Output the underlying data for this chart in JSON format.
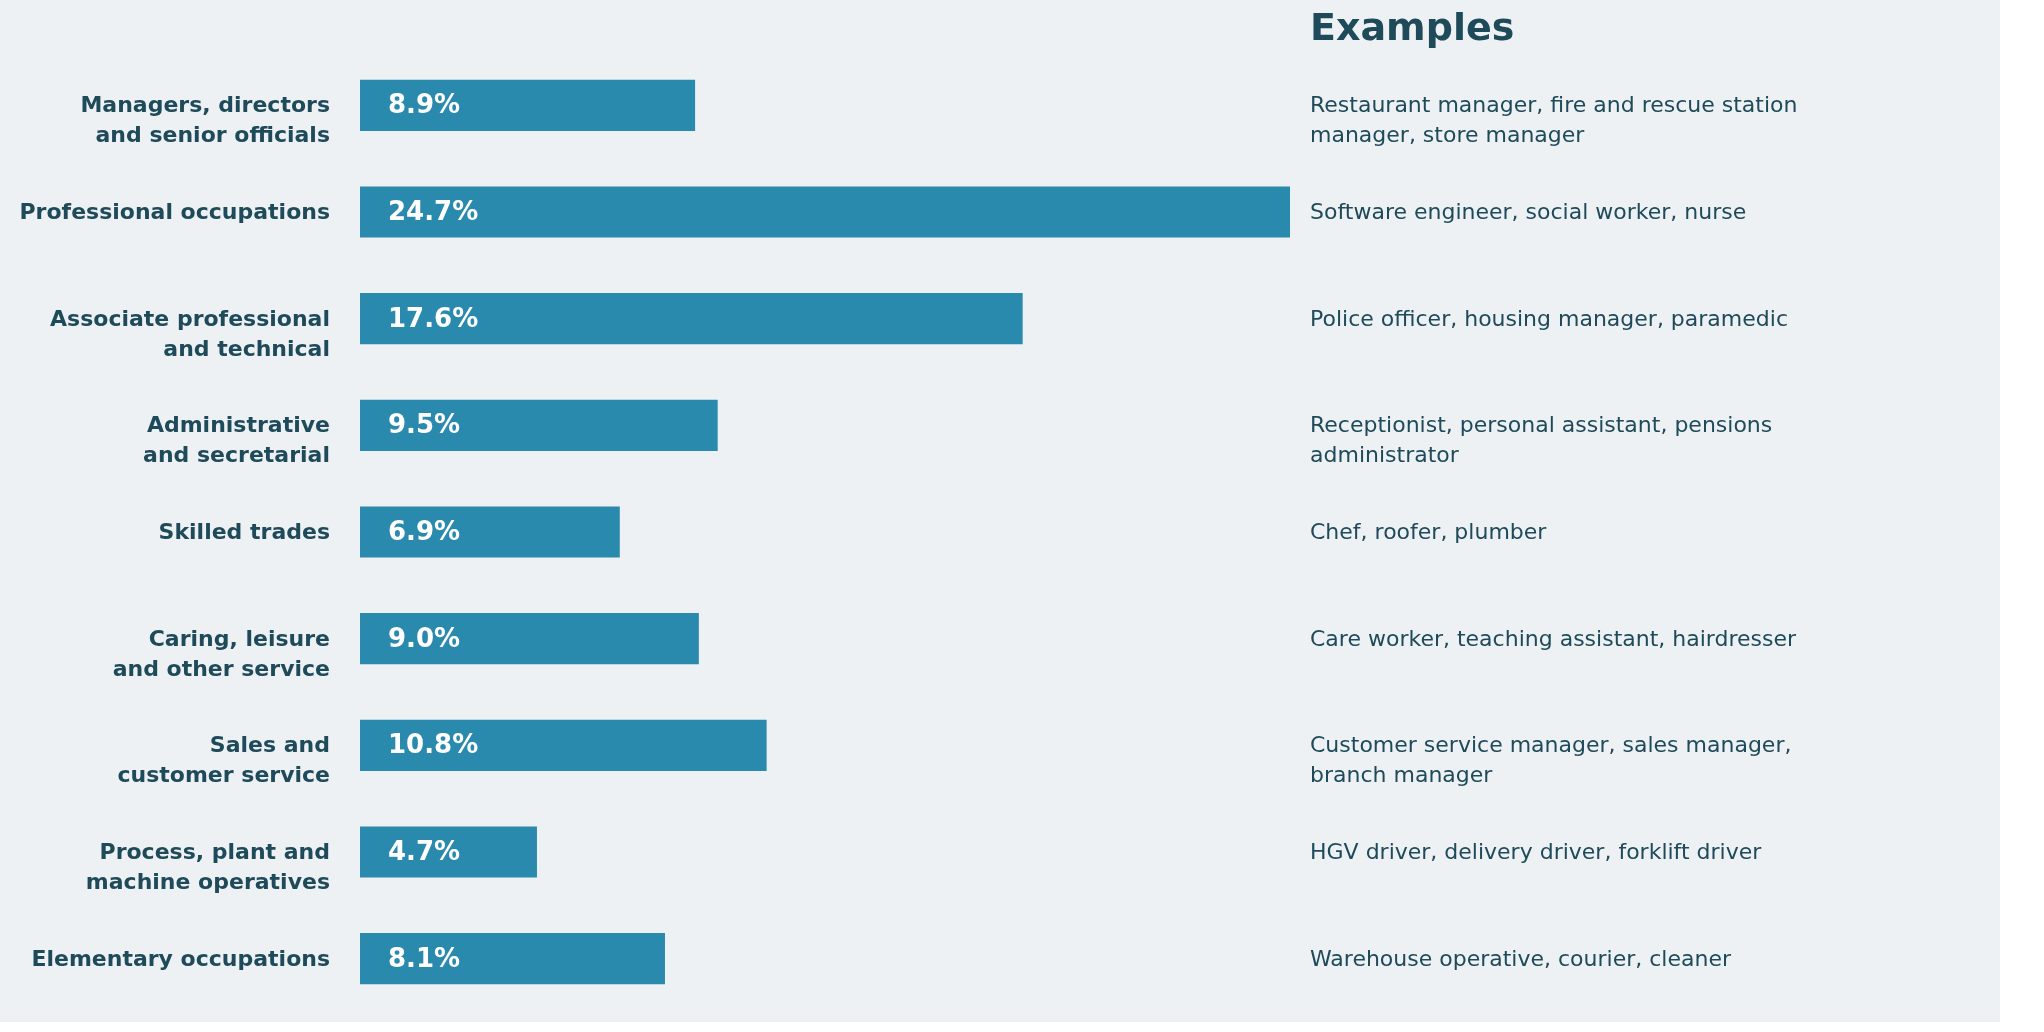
{
  "chart_data": {
    "type": "bar",
    "orientation": "horizontal",
    "categories": [
      "Managers, directors and senior officials",
      "Professional occupations",
      "Associate professional and technical",
      "Administrative and secretarial",
      "Skilled trades",
      "Caring, leisure and other service",
      "Sales and customer service",
      "Process, plant and machine operatives",
      "Elementary occupations"
    ],
    "values": [
      8.9,
      24.7,
      17.6,
      9.5,
      6.9,
      9.0,
      10.8,
      4.7,
      8.1
    ],
    "value_labels": [
      "8.9%",
      "24.7%",
      "17.6%",
      "9.5%",
      "6.9%",
      "9.0%",
      "10.8%",
      "4.7%",
      "8.1%"
    ],
    "color": "#2a8aae",
    "annotations": [
      "Examples",
      "Restaurant manager, fire and rescue station manager, store manager",
      "Software engineer, social worker, nurse",
      "Police officer, housing manager, paramedic",
      "Receptionist, personal assistant, pensions administrator",
      "Chef, roofer, plumber",
      "Care worker, teaching assistant, hairdresser",
      "Customer service manager, sales manager, branch manager",
      "HGV driver, delivery driver, forklift driver",
      "Warehouse operative, courier, cleaner"
    ]
  }
}
